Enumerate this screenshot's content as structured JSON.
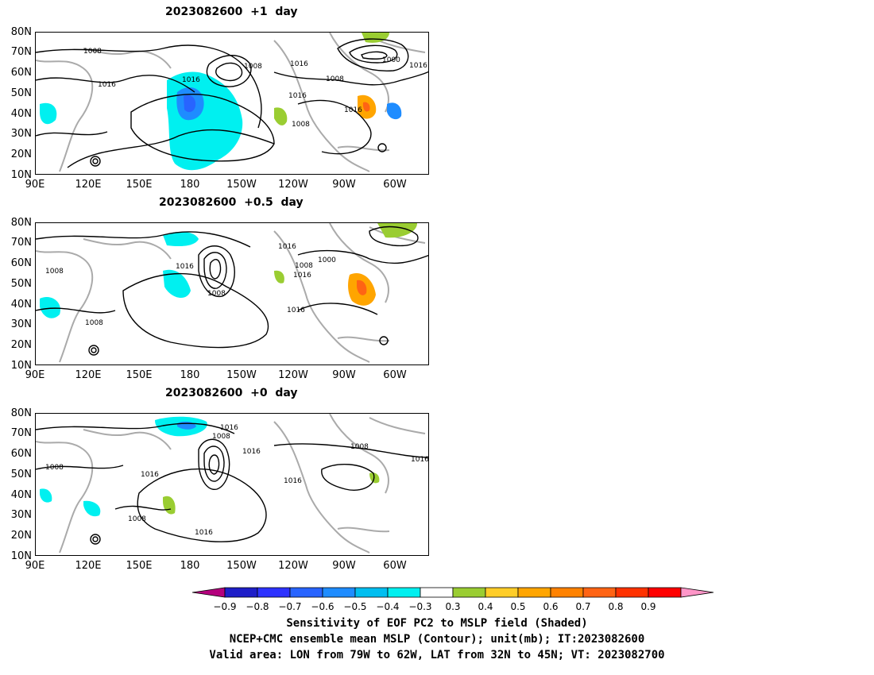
{
  "panels": [
    {
      "title": "2023082600  +1  day",
      "key": "p1",
      "contour_labels": [
        "1008",
        "1008",
        "1016",
        "1016",
        "1008",
        "1016",
        "1000",
        "1016",
        "1016",
        "1016",
        "1008"
      ]
    },
    {
      "title": "2023082600  +0.5  day",
      "key": "p2",
      "contour_labels": [
        "1016",
        "1008",
        "1016",
        "1008",
        "1008",
        "1000",
        "1016",
        "1016",
        "1008"
      ]
    },
    {
      "title": "2023082600  +0  day",
      "key": "p3",
      "contour_labels": [
        "1016",
        "1008",
        "1016",
        "1008",
        "1016",
        "1016",
        "1008",
        "1008",
        "1016",
        "1016"
      ]
    }
  ],
  "lat_labels": [
    "80N",
    "70N",
    "60N",
    "50N",
    "40N",
    "30N",
    "20N",
    "10N"
  ],
  "lon_labels": [
    "90E",
    "120E",
    "150E",
    "180",
    "150W",
    "120W",
    "90W",
    "60W"
  ],
  "colorbar": {
    "colors": [
      "#b4007d",
      "#1e1ec8",
      "#2d32ff",
      "#2864ff",
      "#1e8cff",
      "#00bef0",
      "#00f0f0",
      "#ffffff",
      "#9acd32",
      "#ffcd28",
      "#ffa500",
      "#ff8200",
      "#ff6414",
      "#ff3200",
      "#ff0000",
      "#ff96c8"
    ],
    "labels": [
      "−0.9",
      "−0.8",
      "−0.7",
      "−0.6",
      "−0.5",
      "−0.4",
      "−0.3",
      "0.3",
      "0.4",
      "0.5",
      "0.6",
      "0.7",
      "0.8",
      "0.9"
    ]
  },
  "captions": [
    "Sensitivity of EOF PC2 to MSLP field (Shaded)",
    "NCEP+CMC ensemble mean MSLP (Contour); unit(mb); IT:2023082600",
    "Valid area: LON from 79W to 62W, LAT from 32N to 45N; VT: 2023082700"
  ]
}
